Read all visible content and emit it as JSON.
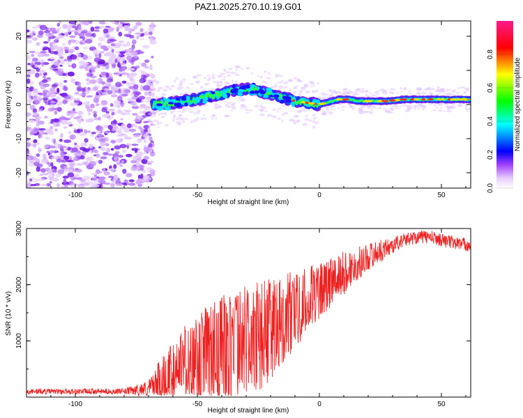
{
  "title": "PAZ1.2025.270.10.19.G01",
  "colors": {
    "signal_line": "#ee2222",
    "noise_dot": "#8a2be2",
    "axis": "#000000"
  },
  "chart_data": [
    {
      "type": "heatmap",
      "xlabel": "Height of straight line (km)",
      "ylabel": "Frequency (Hz)",
      "xlim": [
        -120,
        62
      ],
      "ylim": [
        -24.5,
        24.5
      ],
      "x_ticks": [
        -100,
        -50,
        0,
        50
      ],
      "y_ticks": [
        -20,
        -10,
        0,
        10,
        20
      ],
      "noise_region_x": [
        -120,
        -68
      ],
      "ridge": {
        "x": [
          -68,
          -60,
          -55,
          -50,
          -45,
          -40,
          -35,
          -30,
          -27,
          -23,
          -20,
          -15,
          -10,
          -5,
          0,
          3,
          8,
          12,
          16,
          20,
          28,
          35,
          45,
          55,
          62
        ],
        "hz": [
          0,
          0.5,
          1,
          1.5,
          2.5,
          3,
          4,
          4.5,
          4.5,
          3.5,
          3,
          2,
          1,
          0.5,
          0,
          0.5,
          1.5,
          1.5,
          1,
          1,
          1,
          1.5,
          1.5,
          1.5,
          1.5
        ]
      },
      "colorbar": {
        "label": "Normalized spectral amplitude",
        "ticks": [
          "0.0",
          "0.2",
          "0.4",
          "0.6",
          "0.8"
        ],
        "range": [
          0,
          1
        ]
      }
    },
    {
      "type": "line",
      "xlabel": "Height of straight line (km)",
      "ylabel": "SNR (10 * v/v)",
      "xlim": [
        -120,
        62
      ],
      "ylim": [
        0,
        3000
      ],
      "x_ticks": [
        -100,
        -50,
        0,
        50
      ],
      "y_ticks": [
        1000,
        2000,
        3000
      ],
      "series": [
        {
          "name": "SNR",
          "envelope_x": [
            -120,
            -80,
            -70,
            -65,
            -60,
            -55,
            -50,
            -45,
            -40,
            -35,
            -30,
            -25,
            -20,
            -15,
            -10,
            -5,
            0,
            5,
            10,
            15,
            20,
            25,
            30,
            35,
            40,
            45,
            50,
            55,
            62
          ],
          "envelope_mid": [
            100,
            100,
            150,
            300,
            500,
            600,
            700,
            750,
            800,
            900,
            1000,
            1100,
            1200,
            1400,
            1550,
            1750,
            1900,
            2050,
            2200,
            2350,
            2500,
            2600,
            2700,
            2800,
            2850,
            2850,
            2800,
            2750,
            2700
          ],
          "envelope_amp": [
            50,
            50,
            150,
            400,
            500,
            700,
            800,
            900,
            1000,
            1000,
            1000,
            1000,
            900,
            800,
            700,
            600,
            500,
            450,
            400,
            300,
            250,
            200,
            150,
            120,
            120,
            120,
            120,
            120,
            120
          ]
        }
      ]
    }
  ]
}
